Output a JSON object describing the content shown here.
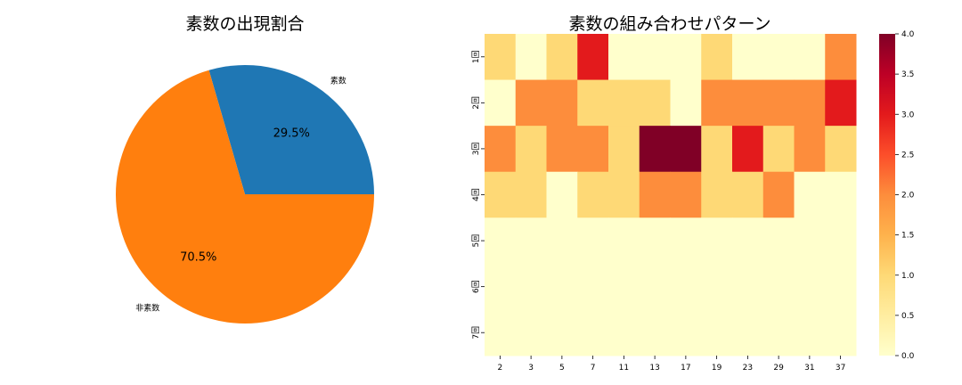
{
  "chart_data": [
    {
      "type": "pie",
      "title": "素数の出現割合",
      "labels": [
        "素数",
        "非素数"
      ],
      "values": [
        29.5,
        70.5
      ],
      "value_labels": [
        "29.5%",
        "70.5%"
      ],
      "colors": [
        "#1f77b4",
        "#ff7f0e"
      ],
      "startangle": 0
    },
    {
      "type": "heatmap",
      "title": "素数の組み合わせパターン",
      "xlabel": "",
      "ylabel": "",
      "x": [
        "2",
        "3",
        "5",
        "7",
        "11",
        "13",
        "17",
        "19",
        "23",
        "29",
        "31",
        "37"
      ],
      "y": [
        "1回",
        "2回",
        "3回",
        "4回",
        "5回",
        "6回",
        "7回"
      ],
      "values": [
        [
          1,
          0,
          1,
          3,
          0,
          0,
          0,
          1,
          0,
          0,
          0,
          2
        ],
        [
          0,
          2,
          2,
          1,
          1,
          1,
          0,
          2,
          2,
          2,
          2,
          3
        ],
        [
          2,
          1,
          2,
          2,
          1,
          4,
          4,
          1,
          3,
          1,
          2,
          1
        ],
        [
          1,
          1,
          0,
          1,
          1,
          2,
          2,
          1,
          1,
          2,
          0,
          0
        ],
        [
          0,
          0,
          0,
          0,
          0,
          0,
          0,
          0,
          0,
          0,
          0,
          0
        ],
        [
          0,
          0,
          0,
          0,
          0,
          0,
          0,
          0,
          0,
          0,
          0,
          0
        ],
        [
          0,
          0,
          0,
          0,
          0,
          0,
          0,
          0,
          0,
          0,
          0,
          0
        ]
      ],
      "colormap": "YlOrRd",
      "color_scale": {
        "0": "#ffffcc",
        "1": "#fed976",
        "2": "#fd8d3c",
        "3": "#e31a1c",
        "4": "#800026"
      },
      "colorbar": {
        "min": 0.0,
        "max": 4.0,
        "ticks": [
          "0.0",
          "0.5",
          "1.0",
          "1.5",
          "2.0",
          "2.5",
          "3.0",
          "3.5",
          "4.0"
        ]
      }
    }
  ]
}
